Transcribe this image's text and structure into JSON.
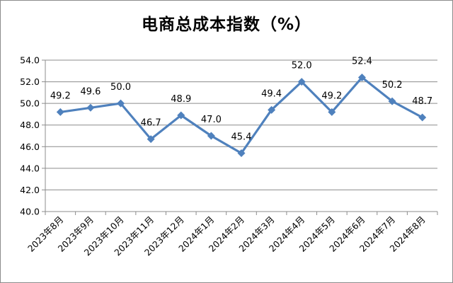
{
  "chart_data": {
    "type": "line",
    "title": "电商总成本指数（%）",
    "xlabel": "",
    "ylabel": "",
    "categories": [
      "2023年8月",
      "2023年9月",
      "2023年10月",
      "2023年11月",
      "2023年12月",
      "2024年1月",
      "2024年2月",
      "2024年3月",
      "2024年4月",
      "2024年5月",
      "2024年6月",
      "2024年7月",
      "2024年8月"
    ],
    "series": [
      {
        "values": [
          49.2,
          49.6,
          50.0,
          46.7,
          48.9,
          47.0,
          45.4,
          49.4,
          52.0,
          49.2,
          52.4,
          50.2,
          48.7
        ],
        "labels": [
          "49.2",
          "49.6",
          "50.0",
          "46.7",
          "48.9",
          "47.0",
          "45.4",
          "49.4",
          "52.0",
          "49.2",
          "52.4",
          "50.2",
          "48.7"
        ],
        "color": "#4f81bd",
        "marker": "diamond"
      }
    ],
    "ylim": [
      40.0,
      54.0
    ],
    "yticks": [
      "40.0",
      "42.0",
      "44.0",
      "46.0",
      "48.0",
      "50.0",
      "52.0",
      "54.0"
    ],
    "grid": true,
    "legend": "none"
  }
}
